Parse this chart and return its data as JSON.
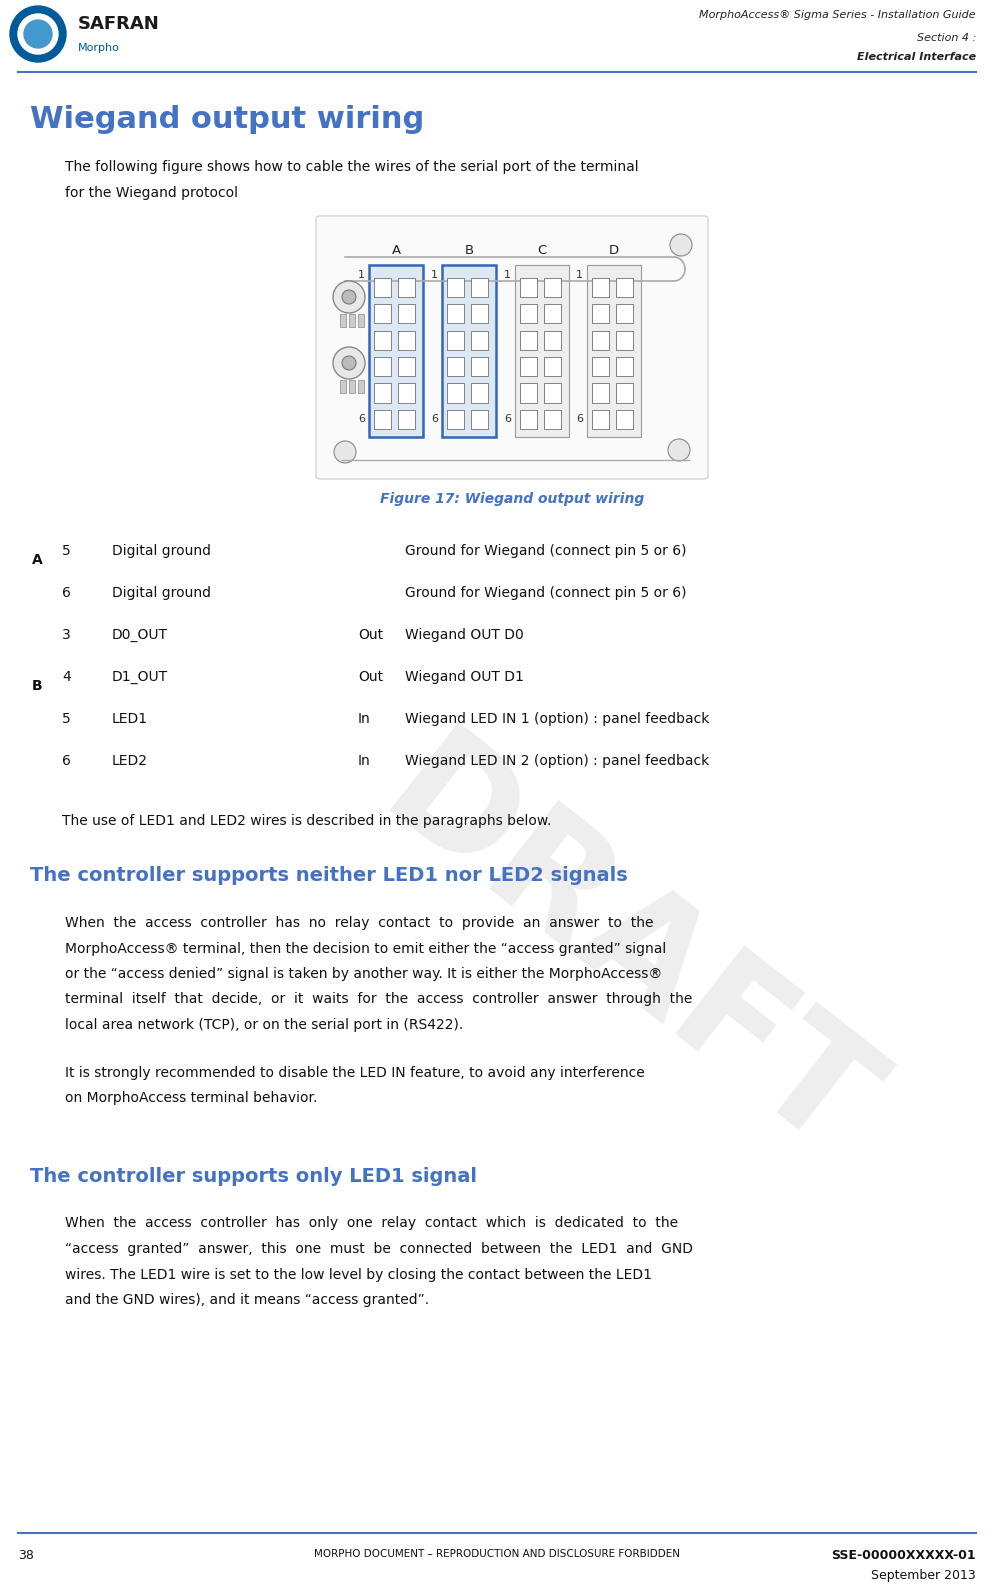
{
  "page_width": 9.94,
  "page_height": 15.87,
  "bg_color": "#ffffff",
  "header_line_color": "#4472C4",
  "header_top_text": "MorphoAccess® Sigma Series - Installation Guide",
  "header_section": "Section 4 :",
  "header_sub": "Electrical Interface",
  "footer_line_color": "#4472C4",
  "footer_left_num": "38",
  "footer_center": "Morpho Document – Reproduction and Disclosure Forbidden",
  "footer_right1": "SSE-00000XXXXX-01",
  "footer_right2": "September 2013",
  "title": "Wiegand output wiring",
  "title_color": "#4472C4",
  "figure_caption": "Figure 17: Wiegand output wiring",
  "figure_caption_color": "#4472C4",
  "table_rows": [
    {
      "group": "A",
      "group_mid": true,
      "pin": "5",
      "name": "Digital ground",
      "dir": "",
      "desc": "Ground for Wiegand (connect pin 5 or 6)"
    },
    {
      "group": "",
      "group_mid": false,
      "pin": "6",
      "name": "Digital ground",
      "dir": "",
      "desc": "Ground for Wiegand (connect pin 5 or 6)"
    },
    {
      "group": "",
      "group_mid": false,
      "pin": "3",
      "name": "D0_OUT",
      "dir": "Out",
      "desc": "Wiegand OUT D0"
    },
    {
      "group": "B",
      "group_mid": true,
      "pin": "4",
      "name": "D1_OUT",
      "dir": "Out",
      "desc": "Wiegand OUT D1"
    },
    {
      "group": "",
      "group_mid": false,
      "pin": "5",
      "name": "LED1",
      "dir": "In",
      "desc": "Wiegand LED IN 1 (option) : panel feedback"
    },
    {
      "group": "",
      "group_mid": false,
      "pin": "6",
      "name": "LED2",
      "dir": "In",
      "desc": "Wiegand LED IN 2 (option) : panel feedback"
    }
  ],
  "led_intro": "The use of LED1 and LED2 wires is described in the paragraphs below.",
  "section1_title": "The controller supports neither LED1 nor LED2 signals",
  "section1_title_color": "#4472C4",
  "section1_para1_lines": [
    "When  the  access  controller  has  no  relay  contact  to  provide  an  answer  to  the",
    "MorphoAccess® terminal, then the decision to emit either the “access granted” signal",
    "or the “access denied” signal is taken by another way. It is either the MorphoAccess®",
    "terminal  itself  that  decide,  or  it  waits  for  the  access  controller  answer  through  the",
    "local area network (TCP), or on the serial port in (RS422)."
  ],
  "section1_para2_lines": [
    "It is strongly recommended to disable the LED IN feature, to avoid any interference",
    "on MorphoAccess terminal behavior."
  ],
  "section2_title": "The controller supports only LED1 signal",
  "section2_title_color": "#4472C4",
  "section2_para1_lines": [
    "When  the  access  controller  has  only  one  relay  contact  which  is  dedicated  to  the",
    "“access  granted”  answer,  this  one  must  be  connected  between  the  LED1  and  GND",
    "wires. The LED1 wire is set to the low level by closing the contact between the LED1",
    "and the GND wires), and it means “access granted”."
  ],
  "draft_color": "#bbbbbb",
  "safran_blue": "#005B9A"
}
